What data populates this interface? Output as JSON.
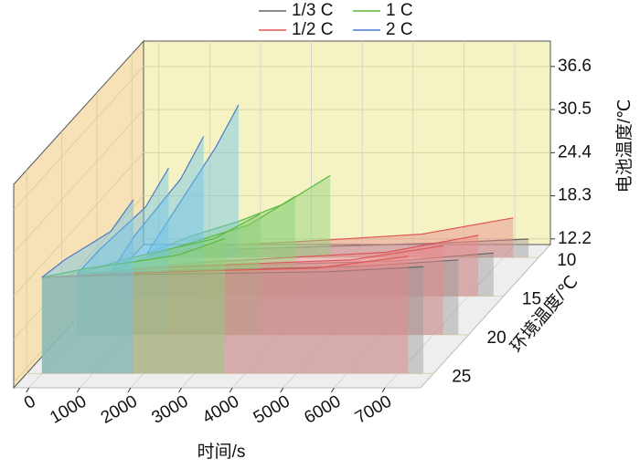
{
  "chart_data": {
    "type": "waterfall3d",
    "xlabel": "时间/s",
    "ylabel": "环境温度/℃",
    "zlabel": "电池温度/℃",
    "xlim": [
      -300,
      7700
    ],
    "xticks": [
      0,
      1000,
      2000,
      3000,
      4000,
      5000,
      6000,
      7000
    ],
    "zlim": [
      11.4,
      40.2
    ],
    "zticks": [
      12.2,
      18.3,
      24.4,
      30.5,
      36.6
    ],
    "y_categories": [
      10,
      15,
      20,
      25
    ],
    "grid": true,
    "series": [
      {
        "name": "1/3 C",
        "color": "#666666",
        "fill": "#9a9a9a",
        "curves": [
          {
            "x": [
              0,
              1875,
              3750,
              5625,
              7500
            ],
            "values": [
              12,
              12.6,
              13,
              13.4,
              14
            ]
          },
          {
            "x": [
              0,
              1875,
              3750,
              5625,
              7500
            ],
            "values": [
              15,
              15.6,
              16,
              16.4,
              17.5
            ]
          },
          {
            "x": [
              0,
              1875,
              3750,
              5625,
              7500
            ],
            "values": [
              20,
              20.5,
              20.8,
              21.1,
              22
            ]
          },
          {
            "x": [
              0,
              1875,
              3750,
              5625,
              7500
            ],
            "values": [
              25,
              25.4,
              25.6,
              25.8,
              26.5
            ]
          }
        ]
      },
      {
        "name": "1/2 C",
        "color": "#e05555",
        "fill": "#e88a8a",
        "curves": [
          {
            "x": [
              0,
              1800,
              3600,
              5400,
              7200
            ],
            "values": [
              12,
              13.2,
              13.9,
              14.7,
              17
            ]
          },
          {
            "x": [
              0,
              1800,
              3600,
              5400,
              7200
            ],
            "values": [
              15,
              16.2,
              16.9,
              17.6,
              20
            ]
          },
          {
            "x": [
              0,
              1800,
              3600,
              5400,
              7200
            ],
            "values": [
              20,
              21,
              21.5,
              22,
              24
            ]
          },
          {
            "x": [
              0,
              1800,
              3600,
              5400,
              7200
            ],
            "values": [
              25,
              25.6,
              26,
              26.3,
              28
            ]
          }
        ]
      },
      {
        "name": "1 C",
        "color": "#5cb83c",
        "fill": "#8fd17a",
        "curves": [
          {
            "x": [
              0,
              900,
              1800,
              2700,
              3600
            ],
            "values": [
              12,
              14.5,
              16.5,
              19,
              23
            ]
          },
          {
            "x": [
              0,
              900,
              1800,
              2700,
              3600
            ],
            "values": [
              15,
              17.5,
              19.5,
              21.5,
              25.5
            ]
          },
          {
            "x": [
              0,
              900,
              1800,
              2700,
              3600
            ],
            "values": [
              20,
              22,
              23.5,
              25,
              28.5
            ]
          },
          {
            "x": [
              0,
              900,
              1800,
              2700,
              3600
            ],
            "values": [
              25,
              26.3,
              27.2,
              28.2,
              30.5
            ]
          }
        ]
      },
      {
        "name": "2 C",
        "color": "#4a7ac8",
        "fill": "#6fc3e8",
        "curves": [
          {
            "x": [
              0,
              450,
              900,
              1350,
              1800
            ],
            "values": [
              12,
              17,
              22,
              27,
              33
            ]
          },
          {
            "x": [
              0,
              450,
              900,
              1350,
              1800
            ],
            "values": [
              15,
              20,
              24,
              28,
              34
            ]
          },
          {
            "x": [
              0,
              450,
              900,
              1350,
              1800
            ],
            "values": [
              20,
              23.5,
              26.5,
              29.5,
              35
            ]
          },
          {
            "x": [
              0,
              450,
              900,
              1350,
              1800
            ],
            "values": [
              25,
              27.5,
              29.5,
              31.5,
              36
            ]
          }
        ]
      }
    ]
  }
}
